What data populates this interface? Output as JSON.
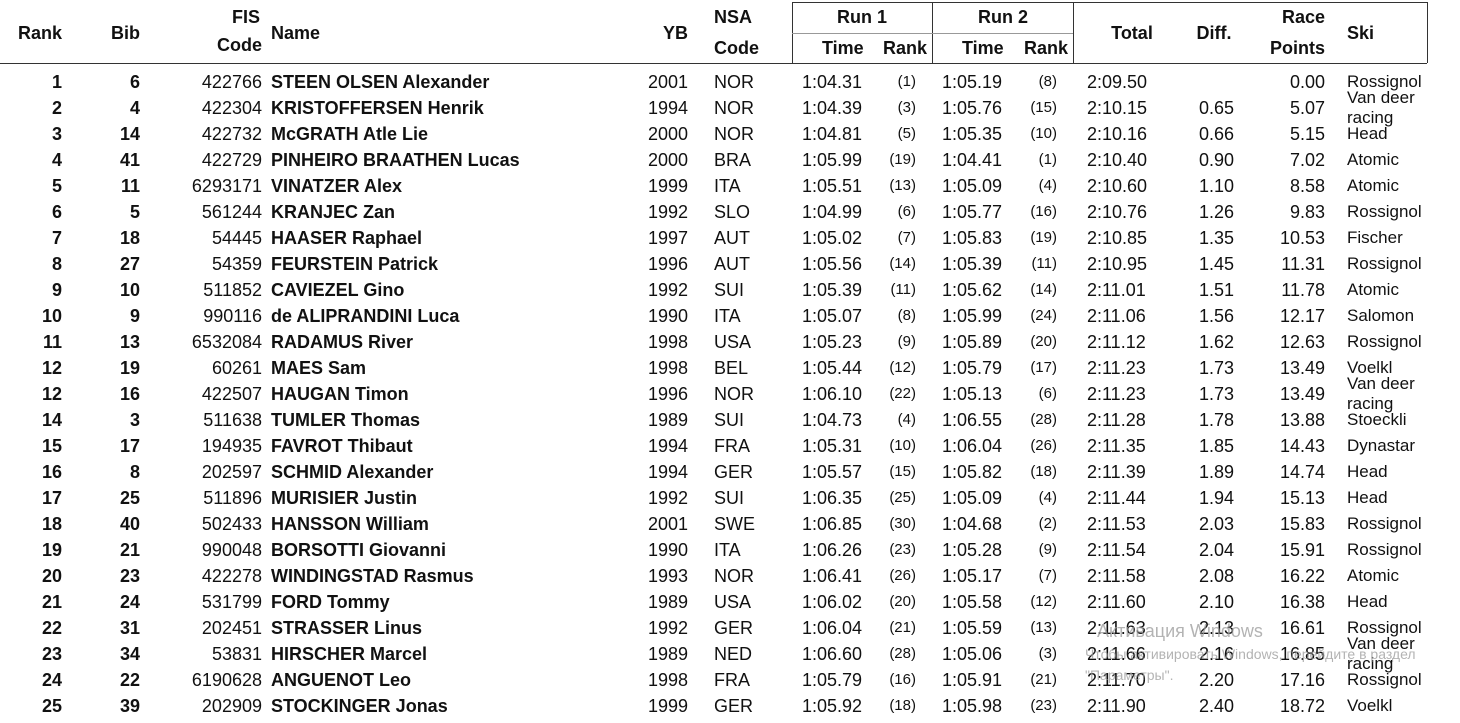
{
  "header": {
    "rank": "Rank",
    "bib": "Bib",
    "fis": [
      "FIS",
      "Code"
    ],
    "name": "Name",
    "yb": "YB",
    "nsa": [
      "NSA",
      "Code"
    ],
    "run1": "Run 1",
    "run2": "Run 2",
    "time": "Time",
    "run_rank": "Rank",
    "total": "Total",
    "diff": "Diff.",
    "points": [
      "Race",
      "Points"
    ],
    "ski": "Ski"
  },
  "rows": [
    [
      "1",
      "6",
      "422766",
      "STEEN OLSEN Alexander",
      "2001",
      "NOR",
      "1:04.31",
      "(1)",
      "1:05.19",
      "(8)",
      "2:09.50",
      null,
      "0.00",
      "Rossignol"
    ],
    [
      "2",
      "4",
      "422304",
      "KRISTOFFERSEN Henrik",
      "1994",
      "NOR",
      "1:04.39",
      "(3)",
      "1:05.76",
      "(15)",
      "2:10.15",
      "0.65",
      "5.07",
      "Van deer racing"
    ],
    [
      "3",
      "14",
      "422732",
      "McGRATH Atle Lie",
      "2000",
      "NOR",
      "1:04.81",
      "(5)",
      "1:05.35",
      "(10)",
      "2:10.16",
      "0.66",
      "5.15",
      "Head"
    ],
    [
      "4",
      "41",
      "422729",
      "PINHEIRO BRAATHEN Lucas",
      "2000",
      "BRA",
      "1:05.99",
      "(19)",
      "1:04.41",
      "(1)",
      "2:10.40",
      "0.90",
      "7.02",
      "Atomic"
    ],
    [
      "5",
      "11",
      "6293171",
      "VINATZER Alex",
      "1999",
      "ITA",
      "1:05.51",
      "(13)",
      "1:05.09",
      "(4)",
      "2:10.60",
      "1.10",
      "8.58",
      "Atomic"
    ],
    [
      "6",
      "5",
      "561244",
      "KRANJEC Zan",
      "1992",
      "SLO",
      "1:04.99",
      "(6)",
      "1:05.77",
      "(16)",
      "2:10.76",
      "1.26",
      "9.83",
      "Rossignol"
    ],
    [
      "7",
      "18",
      "54445",
      "HAASER Raphael",
      "1997",
      "AUT",
      "1:05.02",
      "(7)",
      "1:05.83",
      "(19)",
      "2:10.85",
      "1.35",
      "10.53",
      "Fischer"
    ],
    [
      "8",
      "27",
      "54359",
      "FEURSTEIN Patrick",
      "1996",
      "AUT",
      "1:05.56",
      "(14)",
      "1:05.39",
      "(11)",
      "2:10.95",
      "1.45",
      "11.31",
      "Rossignol"
    ],
    [
      "9",
      "10",
      "511852",
      "CAVIEZEL Gino",
      "1992",
      "SUI",
      "1:05.39",
      "(11)",
      "1:05.62",
      "(14)",
      "2:11.01",
      "1.51",
      "11.78",
      "Atomic"
    ],
    [
      "10",
      "9",
      "990116",
      "de ALIPRANDINI Luca",
      "1990",
      "ITA",
      "1:05.07",
      "(8)",
      "1:05.99",
      "(24)",
      "2:11.06",
      "1.56",
      "12.17",
      "Salomon"
    ],
    [
      "11",
      "13",
      "6532084",
      "RADAMUS River",
      "1998",
      "USA",
      "1:05.23",
      "(9)",
      "1:05.89",
      "(20)",
      "2:11.12",
      "1.62",
      "12.63",
      "Rossignol"
    ],
    [
      "12",
      "19",
      "60261",
      "MAES Sam",
      "1998",
      "BEL",
      "1:05.44",
      "(12)",
      "1:05.79",
      "(17)",
      "2:11.23",
      "1.73",
      "13.49",
      "Voelkl"
    ],
    [
      "12",
      "16",
      "422507",
      "HAUGAN Timon",
      "1996",
      "NOR",
      "1:06.10",
      "(22)",
      "1:05.13",
      "(6)",
      "2:11.23",
      "1.73",
      "13.49",
      "Van deer racing"
    ],
    [
      "14",
      "3",
      "511638",
      "TUMLER Thomas",
      "1989",
      "SUI",
      "1:04.73",
      "(4)",
      "1:06.55",
      "(28)",
      "2:11.28",
      "1.78",
      "13.88",
      "Stoeckli"
    ],
    [
      "15",
      "17",
      "194935",
      "FAVROT Thibaut",
      "1994",
      "FRA",
      "1:05.31",
      "(10)",
      "1:06.04",
      "(26)",
      "2:11.35",
      "1.85",
      "14.43",
      "Dynastar"
    ],
    [
      "16",
      "8",
      "202597",
      "SCHMID Alexander",
      "1994",
      "GER",
      "1:05.57",
      "(15)",
      "1:05.82",
      "(18)",
      "2:11.39",
      "1.89",
      "14.74",
      "Head"
    ],
    [
      "17",
      "25",
      "511896",
      "MURISIER Justin",
      "1992",
      "SUI",
      "1:06.35",
      "(25)",
      "1:05.09",
      "(4)",
      "2:11.44",
      "1.94",
      "15.13",
      "Head"
    ],
    [
      "18",
      "40",
      "502433",
      "HANSSON William",
      "2001",
      "SWE",
      "1:06.85",
      "(30)",
      "1:04.68",
      "(2)",
      "2:11.53",
      "2.03",
      "15.83",
      "Rossignol"
    ],
    [
      "19",
      "21",
      "990048",
      "BORSOTTI Giovanni",
      "1990",
      "ITA",
      "1:06.26",
      "(23)",
      "1:05.28",
      "(9)",
      "2:11.54",
      "2.04",
      "15.91",
      "Rossignol"
    ],
    [
      "20",
      "23",
      "422278",
      "WINDINGSTAD Rasmus",
      "1993",
      "NOR",
      "1:06.41",
      "(26)",
      "1:05.17",
      "(7)",
      "2:11.58",
      "2.08",
      "16.22",
      "Atomic"
    ],
    [
      "21",
      "24",
      "531799",
      "FORD Tommy",
      "1989",
      "USA",
      "1:06.02",
      "(20)",
      "1:05.58",
      "(12)",
      "2:11.60",
      "2.10",
      "16.38",
      "Head"
    ],
    [
      "22",
      "31",
      "202451",
      "STRASSER Linus",
      "1992",
      "GER",
      "1:06.04",
      "(21)",
      "1:05.59",
      "(13)",
      "2:11.63",
      "2.13",
      "16.61",
      "Rossignol"
    ],
    [
      "23",
      "34",
      "53831",
      "HIRSCHER Marcel",
      "1989",
      "NED",
      "1:06.60",
      "(28)",
      "1:05.06",
      "(3)",
      "2:11.66",
      "2.16",
      "16.85",
      "Van deer racing"
    ],
    [
      "24",
      "22",
      "6190628",
      "ANGUENOT Leo",
      "1998",
      "FRA",
      "1:05.79",
      "(16)",
      "1:05.91",
      "(21)",
      "2:11.70",
      "2.20",
      "17.16",
      "Rossignol"
    ],
    [
      "25",
      "39",
      "202909",
      "STOCKINGER Jonas",
      "1999",
      "GER",
      "1:05.92",
      "(18)",
      "1:05.98",
      "(23)",
      "2:11.90",
      "2.40",
      "18.72",
      "Voelkl"
    ]
  ],
  "watermark": [
    "Активация Windows",
    "Чтобы активировать Windows, перейдите в раздел",
    "\"Параметры\"."
  ]
}
